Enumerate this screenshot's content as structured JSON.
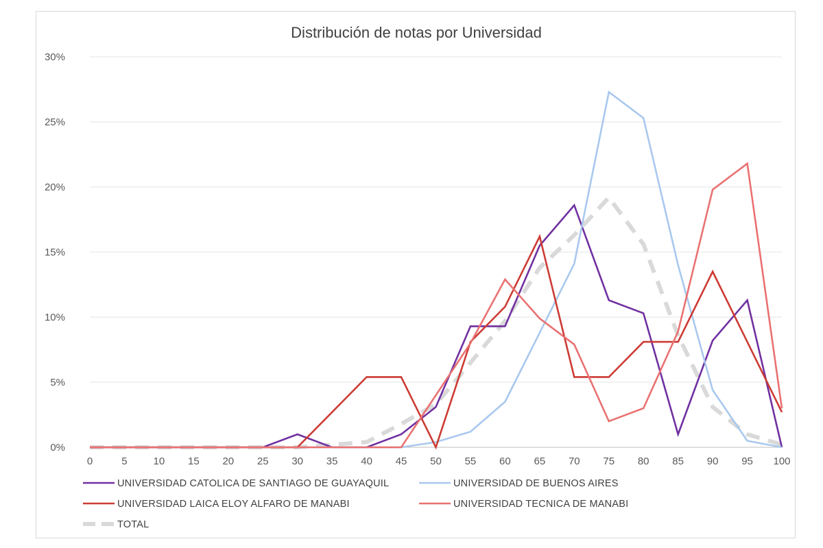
{
  "chart_data": {
    "type": "line",
    "title": "Distribución de notas por Universidad",
    "xlabel": "",
    "ylabel": "",
    "x": [
      0,
      5,
      10,
      15,
      20,
      25,
      30,
      35,
      40,
      45,
      50,
      55,
      60,
      65,
      70,
      75,
      80,
      85,
      90,
      95,
      100
    ],
    "x_tick_labels": [
      "0",
      "5",
      "10",
      "15",
      "20",
      "25",
      "30",
      "35",
      "40",
      "45",
      "50",
      "55",
      "60",
      "65",
      "70",
      "75",
      "80",
      "85",
      "90",
      "95",
      "100"
    ],
    "ylim": [
      0,
      30
    ],
    "y_ticks": [
      0,
      5,
      10,
      15,
      20,
      25,
      30
    ],
    "y_tick_labels": [
      "0%",
      "5%",
      "10%",
      "15%",
      "20%",
      "25%",
      "30%"
    ],
    "grid": true,
    "legend_position": "bottom",
    "series": [
      {
        "name": "UNIVERSIDAD CATOLICA DE SANTIAGO DE GUAYAQUIL",
        "color": "#7030a0",
        "style": "solid",
        "values": [
          0,
          0,
          0,
          0,
          0,
          0,
          1.0,
          0,
          0,
          1.0,
          3.1,
          9.3,
          9.3,
          15.5,
          18.6,
          11.3,
          10.3,
          1.0,
          8.2,
          11.3,
          0
        ]
      },
      {
        "name": "UNIVERSIDAD DE BUENOS AIRES",
        "color": "#a9c8ee",
        "style": "solid",
        "values": [
          0,
          0,
          0,
          0,
          0,
          0,
          0,
          0,
          0,
          0,
          0.4,
          1.2,
          3.5,
          8.8,
          14.1,
          27.3,
          25.3,
          14.0,
          4.4,
          0.5,
          0
        ]
      },
      {
        "name": "UNIVERSIDAD LAICA ELOY ALFARO DE MANABI",
        "color": "#cc3b34",
        "style": "solid",
        "values": [
          0,
          0,
          0,
          0,
          0,
          0,
          0,
          2.7,
          5.4,
          5.4,
          0,
          8.1,
          10.8,
          16.2,
          5.4,
          5.4,
          8.1,
          8.1,
          13.5,
          8.1,
          2.7
        ]
      },
      {
        "name": "UNIVERSIDAD TECNICA DE MANABI",
        "color": "#ea7171",
        "style": "solid",
        "values": [
          0,
          0,
          0,
          0,
          0,
          0,
          0,
          0,
          0,
          0,
          4.0,
          8.0,
          12.9,
          9.9,
          7.9,
          2.0,
          3.0,
          8.9,
          19.8,
          21.8,
          3.0
        ]
      },
      {
        "name": "TOTAL",
        "color": "#d9d9d9",
        "style": "dashed",
        "values": [
          0,
          0,
          0,
          0,
          0,
          0,
          0,
          0.2,
          0.4,
          1.8,
          3.3,
          6.5,
          9.7,
          13.8,
          16.3,
          19.2,
          15.6,
          8.6,
          3.1,
          1.0,
          0.2
        ]
      }
    ]
  }
}
